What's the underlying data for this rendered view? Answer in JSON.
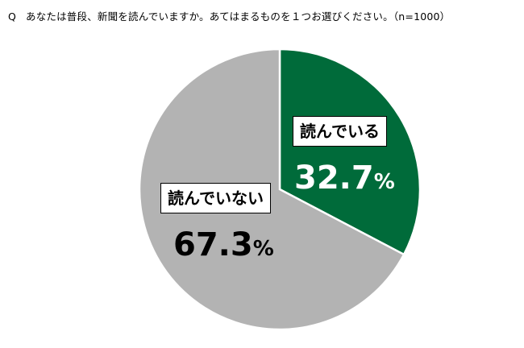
{
  "question": {
    "marker": "Q",
    "text": "あなたは普段、新聞を読んでいますか。あてはまるものを１つお選びください。（n=1000）"
  },
  "chart_data": {
    "type": "pie",
    "start": "12 o'clock",
    "direction": "clockwise",
    "slices": [
      {
        "label": "読んでいる",
        "value": 32.7,
        "display": "32.7",
        "unit": "%",
        "color": "#006B3A",
        "text_color": "#ffffff"
      },
      {
        "label": "読んでいない",
        "value": 67.3,
        "display": "67.3",
        "unit": "%",
        "color": "#B3B3B3",
        "text_color": "#000000"
      }
    ]
  }
}
